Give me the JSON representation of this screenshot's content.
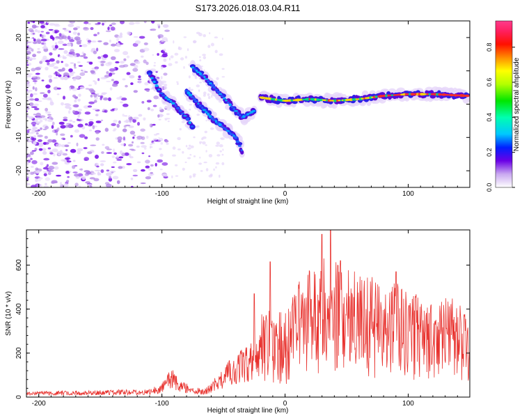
{
  "figure_title": "S173.2026.018.03.04.R11",
  "colors": {
    "snr_line": "#e8322e",
    "spectro_low": "#e6d6fa",
    "spectro_mid": "#7a16e8",
    "axis": "#000000"
  },
  "chart_data": [
    {
      "type": "heatmap",
      "title": "S173.2026.018.03.04.R11",
      "xlabel": "Height of straight line (km)",
      "ylabel": "Frequency (Hz)",
      "xlim": [
        -210,
        150
      ],
      "ylim": [
        -25,
        25
      ],
      "xticks": [
        -200,
        -100,
        0,
        100
      ],
      "yticks": [
        -20,
        -10,
        0,
        10,
        20
      ],
      "colorbar": {
        "label": "Normalized spectral amplitude",
        "range": [
          0,
          0.95
        ],
        "ticks": [
          0.0,
          0.2,
          0.4,
          0.6,
          0.8
        ]
      },
      "features": {
        "noise_region_km": [
          -210,
          -110
        ],
        "main_trace": [
          {
            "x": -20,
            "y": 2
          },
          {
            "x": 0,
            "y": 1
          },
          {
            "x": 20,
            "y": 1.5
          },
          {
            "x": 40,
            "y": 1
          },
          {
            "x": 60,
            "y": 1.5
          },
          {
            "x": 80,
            "y": 2.5
          },
          {
            "x": 100,
            "y": 3
          },
          {
            "x": 120,
            "y": 3
          },
          {
            "x": 148,
            "y": 2.5
          }
        ],
        "branch_a": [
          {
            "x": -110,
            "y": 9
          },
          {
            "x": -100,
            "y": 3
          },
          {
            "x": -90,
            "y": 0
          },
          {
            "x": -80,
            "y": -4
          },
          {
            "x": -75,
            "y": -7
          }
        ],
        "branch_b": [
          {
            "x": -80,
            "y": 4
          },
          {
            "x": -70,
            "y": 0
          },
          {
            "x": -60,
            "y": -4
          },
          {
            "x": -50,
            "y": -7
          },
          {
            "x": -40,
            "y": -10
          },
          {
            "x": -35,
            "y": -14
          }
        ],
        "branch_c": [
          {
            "x": -75,
            "y": 11
          },
          {
            "x": -65,
            "y": 8
          },
          {
            "x": -55,
            "y": 4
          },
          {
            "x": -45,
            "y": 0
          },
          {
            "x": -35,
            "y": -4
          },
          {
            "x": -25,
            "y": -2
          }
        ]
      }
    },
    {
      "type": "line",
      "xlabel": "Height of straight line (km)",
      "ylabel": "SNR (10 * v/v)",
      "xlim": [
        -210,
        150
      ],
      "ylim": [
        0,
        760
      ],
      "xticks": [
        -200,
        -100,
        0,
        100
      ],
      "yticks": [
        0,
        200,
        400,
        600
      ],
      "series": [
        {
          "name": "SNR",
          "envelope": [
            {
              "x": -210,
              "y": 20
            },
            {
              "x": -150,
              "y": 25
            },
            {
              "x": -110,
              "y": 30
            },
            {
              "x": -100,
              "y": 50
            },
            {
              "x": -92,
              "y": 110
            },
            {
              "x": -85,
              "y": 60
            },
            {
              "x": -75,
              "y": 40
            },
            {
              "x": -65,
              "y": 30
            },
            {
              "x": -55,
              "y": 80
            },
            {
              "x": -45,
              "y": 140
            },
            {
              "x": -30,
              "y": 190
            },
            {
              "x": -15,
              "y": 320
            },
            {
              "x": 0,
              "y": 280
            },
            {
              "x": 10,
              "y": 380
            },
            {
              "x": 20,
              "y": 450
            },
            {
              "x": 30,
              "y": 470
            },
            {
              "x": 40,
              "y": 460
            },
            {
              "x": 60,
              "y": 420
            },
            {
              "x": 80,
              "y": 400
            },
            {
              "x": 100,
              "y": 380
            },
            {
              "x": 120,
              "y": 340
            },
            {
              "x": 140,
              "y": 330
            },
            {
              "x": 150,
              "y": 260
            }
          ],
          "peaks": [
            {
              "x": 30,
              "y": 740
            },
            {
              "x": 37,
              "y": 760
            },
            {
              "x": 45,
              "y": 620
            },
            {
              "x": -12,
              "y": 615
            },
            {
              "x": -25,
              "y": 470
            },
            {
              "x": 90,
              "y": 570
            }
          ]
        }
      ]
    }
  ]
}
